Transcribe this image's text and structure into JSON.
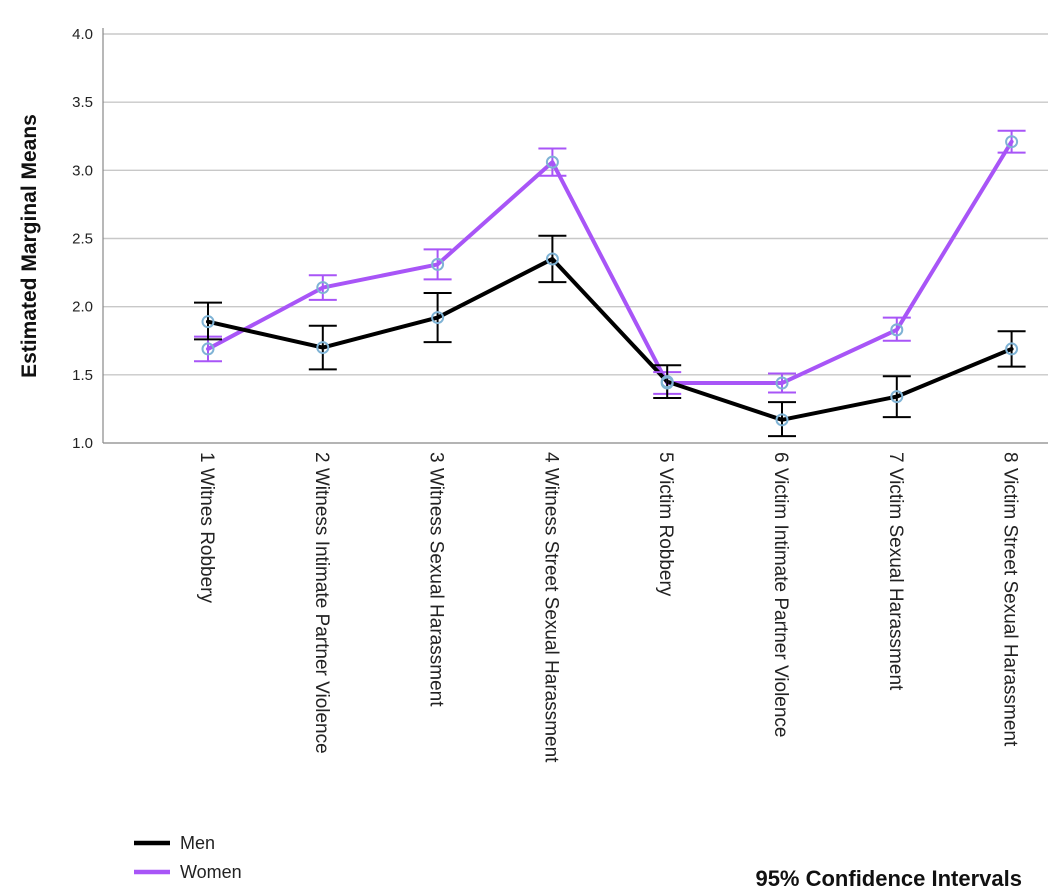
{
  "chart_data": {
    "type": "line",
    "ylabel": "Estimated Marginal Means",
    "ylim": [
      1.0,
      4.0
    ],
    "yticks": [
      "1.0",
      "1.5",
      "2.0",
      "2.5",
      "3.0",
      "3.5",
      "4.0"
    ],
    "grid": true,
    "legend_position": "bottom-left",
    "footnote": "95% Confidence Intervals",
    "categories": [
      "1 Witnes Robbery",
      "2 Witness Intimate Partner Violence",
      "3 Witness Sexual Harassment",
      "4 Witness Street Sexual Harassment",
      "5 Victim Robbery",
      "6 Victim Intimate Partner Violence",
      "7 Victim Sexual Harassment",
      "8 Victim Street Sexual Harassment"
    ],
    "series": [
      {
        "name": "Men",
        "color": "#000000",
        "values": [
          1.89,
          1.7,
          1.92,
          2.35,
          1.45,
          1.17,
          1.34,
          1.69
        ],
        "ci_low": [
          1.76,
          1.54,
          1.74,
          2.18,
          1.33,
          1.05,
          1.19,
          1.56
        ],
        "ci_high": [
          2.03,
          1.86,
          2.1,
          2.52,
          1.57,
          1.3,
          1.49,
          1.82
        ]
      },
      {
        "name": "Women",
        "color": "#a855f7",
        "values": [
          1.69,
          2.14,
          2.31,
          3.06,
          1.44,
          1.44,
          1.83,
          3.21
        ],
        "ci_low": [
          1.6,
          2.05,
          2.2,
          2.96,
          1.36,
          1.37,
          1.75,
          3.13
        ],
        "ci_high": [
          1.78,
          2.23,
          2.42,
          3.16,
          1.52,
          1.51,
          1.92,
          3.29
        ]
      }
    ],
    "marker_color": "#7fb3d5"
  }
}
